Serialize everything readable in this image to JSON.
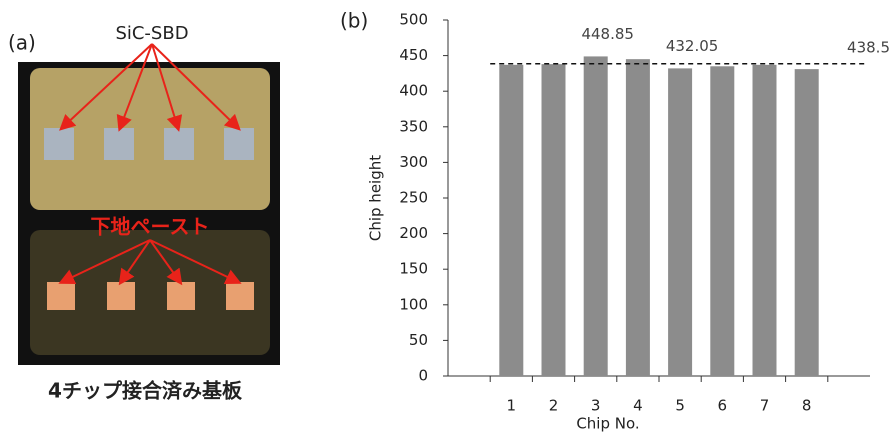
{
  "photo": {
    "panel_label": "(a)",
    "top_label": "SiC-SBD",
    "bottom_label": "下地ペースト",
    "caption": "4チップ接合済み基板"
  },
  "chart_data": {
    "type": "bar",
    "panel_label": "(b)",
    "x_label": "Chip No.",
    "y_label": "Chip height",
    "categories": [
      null,
      "1",
      "2",
      "3",
      "4",
      "5",
      "6",
      "7",
      "8",
      null
    ],
    "values": [
      null,
      437,
      438,
      448.85,
      445,
      432.05,
      435,
      437,
      431,
      null
    ],
    "value_labels": [
      null,
      null,
      null,
      "448.85",
      null,
      "432.05",
      null,
      null,
      null,
      null
    ],
    "color": "#8c8c8c",
    "reference_line": 438.5,
    "ylim": [
      0,
      500
    ],
    "yticks": [
      0,
      50,
      100,
      150,
      200,
      250,
      300,
      350,
      400,
      450,
      500
    ],
    "grid": false
  }
}
